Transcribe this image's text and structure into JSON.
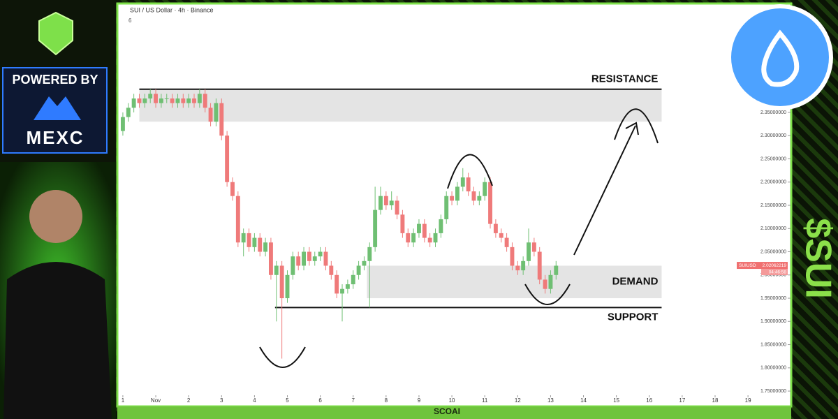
{
  "header": {
    "title": "SUI / US Dollar · 4h · Binance",
    "indicator": "6"
  },
  "branding": {
    "powered_by": "POWERED BY",
    "exchange": "MEXC",
    "ticker": "$SUI",
    "footer": "SCOAI"
  },
  "chart_data": {
    "type": "candlestick",
    "x": [
      0,
      4,
      8,
      12,
      16,
      20,
      24,
      28,
      32,
      36,
      40,
      44,
      48,
      52,
      56,
      60,
      64,
      68,
      72,
      76,
      80,
      84,
      88,
      92,
      96,
      100,
      104,
      108,
      112,
      116,
      120,
      124,
      128,
      132,
      136,
      140,
      144,
      148,
      152,
      156,
      160,
      164,
      168,
      172,
      176,
      180,
      184,
      188,
      192,
      196,
      200,
      204,
      208,
      212,
      216,
      220,
      224,
      228,
      232,
      236,
      240,
      244,
      248,
      252,
      256,
      260,
      264,
      268,
      272,
      276,
      280,
      284,
      288,
      292,
      296,
      300,
      304,
      308,
      312,
      316
    ],
    "open": [
      2.31,
      2.34,
      2.36,
      2.38,
      2.37,
      2.38,
      2.39,
      2.37,
      2.38,
      2.38,
      2.37,
      2.38,
      2.37,
      2.38,
      2.37,
      2.39,
      2.36,
      2.33,
      2.37,
      2.3,
      2.2,
      2.17,
      2.07,
      2.09,
      2.06,
      2.08,
      2.05,
      2.07,
      2.0,
      2.02,
      1.95,
      2.0,
      2.04,
      2.02,
      2.05,
      2.03,
      2.04,
      2.05,
      2.02,
      2.0,
      1.96,
      1.97,
      1.98,
      2.0,
      2.02,
      2.03,
      2.06,
      2.14,
      2.17,
      2.15,
      2.16,
      2.13,
      2.09,
      2.07,
      2.09,
      2.11,
      2.08,
      2.07,
      2.09,
      2.12,
      2.17,
      2.16,
      2.19,
      2.21,
      2.18,
      2.16,
      2.17,
      2.2,
      2.11,
      2.09,
      2.08,
      2.06,
      2.02,
      2.01,
      2.03,
      2.07,
      2.05,
      1.99,
      1.97,
      2.0
    ],
    "high": [
      2.35,
      2.37,
      2.39,
      2.39,
      2.39,
      2.4,
      2.4,
      2.39,
      2.39,
      2.39,
      2.39,
      2.39,
      2.39,
      2.39,
      2.4,
      2.4,
      2.37,
      2.38,
      2.38,
      2.31,
      2.21,
      2.18,
      2.1,
      2.1,
      2.09,
      2.09,
      2.08,
      2.08,
      2.03,
      2.03,
      2.01,
      2.05,
      2.05,
      2.06,
      2.06,
      2.05,
      2.06,
      2.06,
      2.03,
      2.01,
      1.98,
      1.99,
      2.01,
      2.03,
      2.04,
      2.07,
      2.19,
      2.19,
      2.18,
      2.18,
      2.17,
      2.14,
      2.1,
      2.1,
      2.12,
      2.12,
      2.09,
      2.1,
      2.13,
      2.18,
      2.18,
      2.2,
      2.23,
      2.22,
      2.19,
      2.18,
      2.21,
      2.21,
      2.12,
      2.1,
      2.09,
      2.07,
      2.03,
      2.04,
      2.1,
      2.08,
      2.06,
      2.0,
      2.01,
      2.03
    ],
    "low": [
      2.3,
      2.33,
      2.35,
      2.36,
      2.36,
      2.37,
      2.36,
      2.36,
      2.37,
      2.36,
      2.36,
      2.36,
      2.36,
      2.36,
      2.36,
      2.35,
      2.32,
      2.32,
      2.29,
      2.19,
      2.16,
      2.06,
      2.04,
      2.05,
      2.05,
      2.04,
      2.04,
      1.99,
      1.9,
      1.82,
      1.94,
      1.99,
      2.01,
      2.01,
      2.02,
      2.02,
      2.03,
      2.01,
      1.99,
      1.95,
      1.9,
      1.96,
      1.97,
      1.99,
      2.01,
      1.93,
      2.05,
      2.13,
      2.14,
      2.14,
      2.12,
      2.08,
      2.06,
      2.06,
      2.08,
      2.07,
      2.06,
      2.06,
      2.08,
      2.11,
      2.15,
      2.15,
      2.18,
      2.17,
      2.15,
      2.15,
      2.16,
      2.1,
      2.08,
      2.07,
      2.05,
      2.01,
      2.0,
      2.0,
      2.02,
      2.04,
      1.98,
      1.96,
      1.96,
      1.99
    ],
    "close": [
      2.34,
      2.36,
      2.38,
      2.37,
      2.38,
      2.39,
      2.37,
      2.38,
      2.38,
      2.37,
      2.38,
      2.37,
      2.38,
      2.37,
      2.39,
      2.36,
      2.33,
      2.37,
      2.3,
      2.2,
      2.17,
      2.07,
      2.09,
      2.06,
      2.08,
      2.05,
      2.07,
      2.0,
      2.02,
      1.95,
      2.0,
      2.04,
      2.02,
      2.05,
      2.03,
      2.04,
      2.05,
      2.02,
      2.0,
      1.96,
      1.97,
      1.98,
      2.0,
      2.02,
      2.03,
      2.06,
      2.14,
      2.17,
      2.15,
      2.16,
      2.13,
      2.09,
      2.07,
      2.09,
      2.11,
      2.08,
      2.07,
      2.09,
      2.12,
      2.17,
      2.16,
      2.19,
      2.21,
      2.18,
      2.16,
      2.17,
      2.2,
      2.11,
      2.09,
      2.08,
      2.06,
      2.02,
      2.01,
      2.03,
      2.07,
      2.05,
      1.99,
      1.97,
      2.0,
      2.02
    ],
    "up_color": "#6fbf73",
    "down_color": "#ef7a7a",
    "xlim": [
      -2,
      486
    ],
    "xticks": [
      {
        "value": 0,
        "label": "1"
      },
      {
        "value": 24,
        "label": "Nov"
      },
      {
        "value": 48,
        "label": "2"
      },
      {
        "value": 72,
        "label": "3"
      },
      {
        "value": 96,
        "label": "4"
      },
      {
        "value": 120,
        "label": "5"
      },
      {
        "value": 144,
        "label": "6"
      },
      {
        "value": 168,
        "label": "7"
      },
      {
        "value": 192,
        "label": "8"
      },
      {
        "value": 216,
        "label": "9"
      },
      {
        "value": 240,
        "label": "10"
      },
      {
        "value": 264,
        "label": "11"
      },
      {
        "value": 288,
        "label": "12"
      },
      {
        "value": 312,
        "label": "13"
      },
      {
        "value": 336,
        "label": "14"
      },
      {
        "value": 360,
        "label": "15"
      },
      {
        "value": 384,
        "label": "16"
      },
      {
        "value": 408,
        "label": "17"
      },
      {
        "value": 432,
        "label": "18"
      },
      {
        "value": 456,
        "label": "19"
      }
    ],
    "ylim": [
      1.72,
      2.58
    ],
    "yticks": [
      {
        "value": 1.75,
        "label": "1.75000000"
      },
      {
        "value": 1.8,
        "label": "1.80000000"
      },
      {
        "value": 1.85,
        "label": "1.85000000"
      },
      {
        "value": 1.9,
        "label": "1.90000000"
      },
      {
        "value": 1.95,
        "label": "1.95000000"
      },
      {
        "value": 2.0,
        "label": "2.00000000"
      },
      {
        "value": 2.05,
        "label": "2.05000000"
      },
      {
        "value": 2.1,
        "label": "2.10000000"
      },
      {
        "value": 2.15,
        "label": "2.15000000"
      },
      {
        "value": 2.2,
        "label": "2.20000000"
      },
      {
        "value": 2.25,
        "label": "2.25000000"
      },
      {
        "value": 2.3,
        "label": "2.30000000"
      },
      {
        "value": 2.35,
        "label": "2.35000000"
      }
    ],
    "zones": [
      {
        "name": "RESISTANCE",
        "low": 2.33,
        "high": 2.4,
        "start": 12,
        "end": 393
      },
      {
        "name": "DEMAND",
        "low": 1.95,
        "high": 2.02,
        "start": 178,
        "end": 393
      }
    ],
    "lines": [
      {
        "name": "SUPPORT",
        "value": 1.93,
        "start": 111,
        "end": 393
      }
    ],
    "price_label": {
      "symbol": "SUIUSD",
      "price": 2.02062219,
      "countdown": "04:46:58"
    }
  }
}
